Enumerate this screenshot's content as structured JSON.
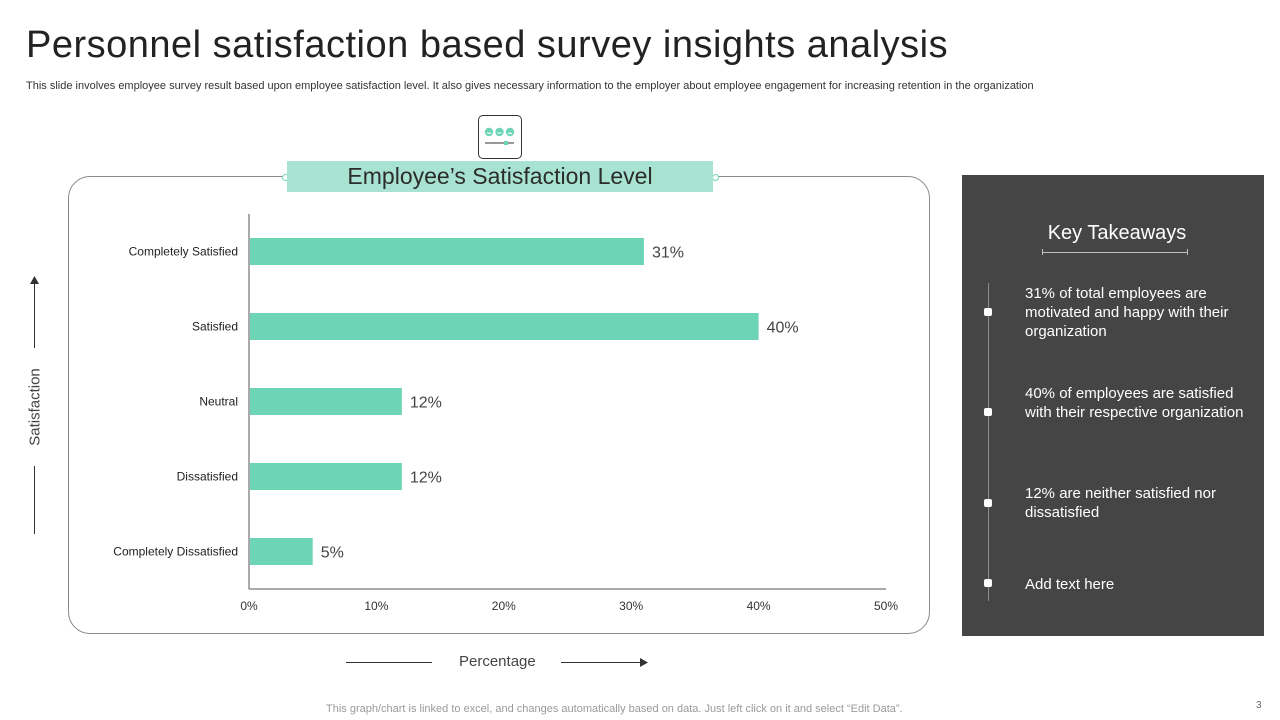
{
  "header": {
    "title": "Personnel satisfaction based survey insights analysis",
    "subtitle": "This slide involves employee survey result based upon employee satisfaction level. It also gives necessary information to the employer about employee engagement for increasing retention in the organization"
  },
  "chart_data": {
    "type": "bar",
    "orientation": "horizontal",
    "title": "Employee’s Satisfaction Level",
    "categories": [
      "Completely Satisfied",
      "Satisfied",
      "Neutral",
      "Dissatisfied",
      "Completely Dissatisfied"
    ],
    "values": [
      31,
      40,
      12,
      12,
      5
    ],
    "data_labels": [
      "31%",
      "40%",
      "12%",
      "12%",
      "5%"
    ],
    "xlabel": "Percentage",
    "ylabel": "Satisfaction",
    "xlim": [
      0,
      50
    ],
    "xticks": [
      "0%",
      "10%",
      "20%",
      "30%",
      "40%",
      "50%"
    ],
    "bar_color": "#6dd5b6",
    "grid": false
  },
  "takeaways": {
    "title": "Key Takeaways",
    "items": [
      "31% of total employees are motivated and happy with their organization",
      "40% of employees are satisfied with their respective organization",
      "12% are neither satisfied nor dissatisfied",
      "Add text here"
    ]
  },
  "footer": {
    "note": "This graph/chart is linked to excel, and changes automatically based on data. Just left click on it and select “Edit Data”.",
    "page_number": "3"
  },
  "colors": {
    "accent": "#6dd5b6",
    "title_fill": "#a8e3d2",
    "panel_bg": "#454545"
  }
}
